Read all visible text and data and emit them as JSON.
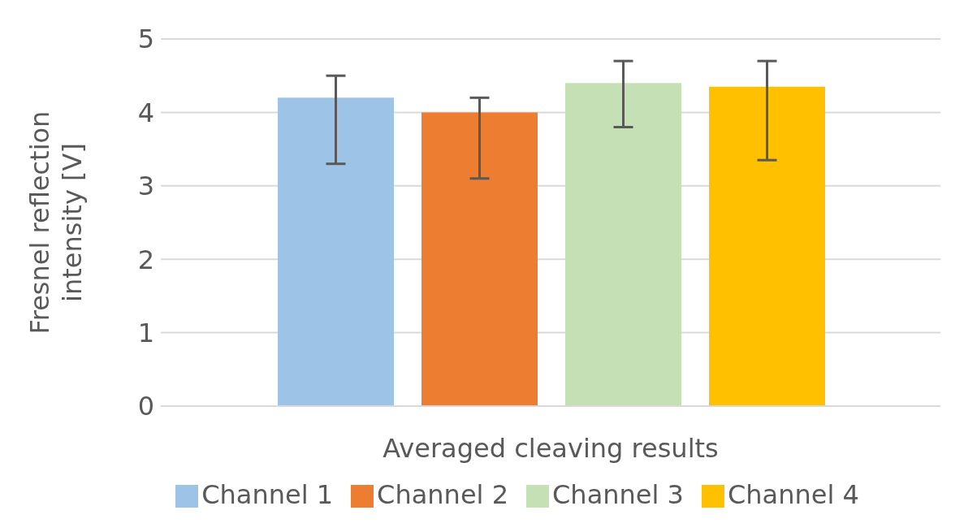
{
  "chart_data": {
    "type": "bar",
    "ylabel": "Fresnel reflection intensity [V]",
    "categories": [
      "Averaged cleaving results"
    ],
    "series": [
      {
        "name": "Channel 1",
        "color": "#9dc3e6",
        "values": [
          4.2
        ],
        "errors": [
          [
            3.3,
            4.5
          ]
        ]
      },
      {
        "name": "Channel 2",
        "color": "#ed7d31",
        "values": [
          4.0
        ],
        "errors": [
          [
            3.1,
            4.2
          ]
        ]
      },
      {
        "name": "Channel 3",
        "color": "#c5e0b4",
        "values": [
          4.4
        ],
        "errors": [
          [
            3.8,
            4.7
          ]
        ]
      },
      {
        "name": "Channel 4",
        "color": "#ffc000",
        "values": [
          4.35
        ],
        "errors": [
          [
            3.35,
            4.7
          ]
        ]
      }
    ],
    "ylim": [
      0,
      5
    ],
    "yticks": [
      0,
      1,
      2,
      3,
      4,
      5
    ],
    "grid": "y",
    "legend": "bottom"
  }
}
